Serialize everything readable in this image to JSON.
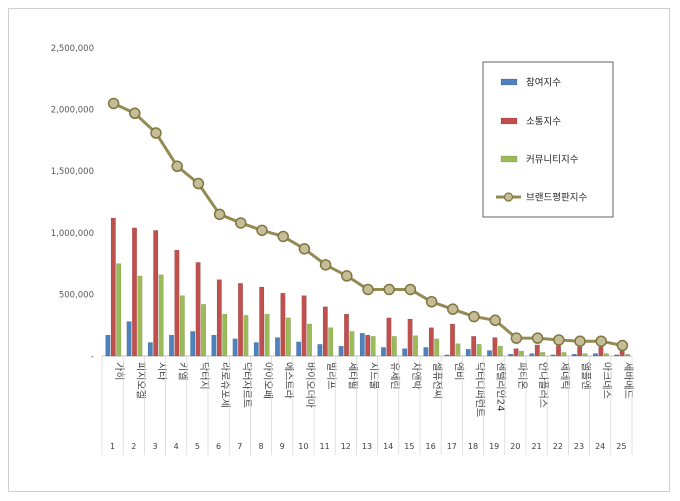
{
  "chart_data": {
    "type": "bar",
    "ylim": [
      0,
      2500000
    ],
    "yticks": [
      "-",
      "500,000",
      "1,000,000",
      "1,500,000",
      "2,000,000",
      "2,500,000"
    ],
    "categories": [
      "가히",
      "피지오겔",
      "시타",
      "키엘",
      "닥터지",
      "라로슈포제",
      "닥터자르트",
      "아이오페",
      "에스트라",
      "바이오더마",
      "빌리프",
      "세타필",
      "시드물",
      "유세린",
      "차앤박",
      "셀퓨전씨",
      "엔비",
      "닥터디퍼런트",
      "센텔리안24",
      "파티온",
      "안나플러스",
      "제네틱",
      "앨플엔",
      "아크네스",
      "세바메드"
    ],
    "ranks": [
      "1",
      "2",
      "3",
      "4",
      "5",
      "6",
      "7",
      "8",
      "9",
      "10",
      "11",
      "12",
      "13",
      "14",
      "15",
      "16",
      "17",
      "18",
      "19",
      "20",
      "21",
      "22",
      "23",
      "24",
      "25"
    ],
    "series": [
      {
        "name": "참여지수",
        "type": "bar",
        "color": "#4f81bd",
        "values": [
          170000,
          280000,
          110000,
          170000,
          200000,
          170000,
          140000,
          110000,
          150000,
          115000,
          95000,
          80000,
          185000,
          70000,
          60000,
          70000,
          10000,
          55000,
          45000,
          15000,
          20000,
          10000,
          15000,
          20000,
          10000
        ]
      },
      {
        "name": "소통지수",
        "type": "bar",
        "color": "#c0504d",
        "values": [
          1120000,
          1040000,
          1020000,
          860000,
          760000,
          620000,
          590000,
          560000,
          510000,
          490000,
          400000,
          340000,
          170000,
          310000,
          300000,
          230000,
          260000,
          160000,
          150000,
          60000,
          90000,
          85000,
          75000,
          75000,
          55000
        ]
      },
      {
        "name": "커뮤니티지수",
        "type": "bar",
        "color": "#9bbb59",
        "values": [
          750000,
          650000,
          660000,
          490000,
          420000,
          340000,
          330000,
          340000,
          310000,
          260000,
          230000,
          200000,
          160000,
          160000,
          165000,
          140000,
          100000,
          95000,
          80000,
          40000,
          30000,
          30000,
          20000,
          20000,
          15000
        ]
      },
      {
        "name": "브랜드평판지수",
        "type": "line",
        "color": "#948a54",
        "values": [
          2050000,
          1970000,
          1810000,
          1540000,
          1400000,
          1150000,
          1080000,
          1020000,
          970000,
          870000,
          740000,
          650000,
          540000,
          540000,
          540000,
          440000,
          380000,
          320000,
          290000,
          145000,
          145000,
          130000,
          120000,
          120000,
          85000
        ]
      }
    ]
  }
}
